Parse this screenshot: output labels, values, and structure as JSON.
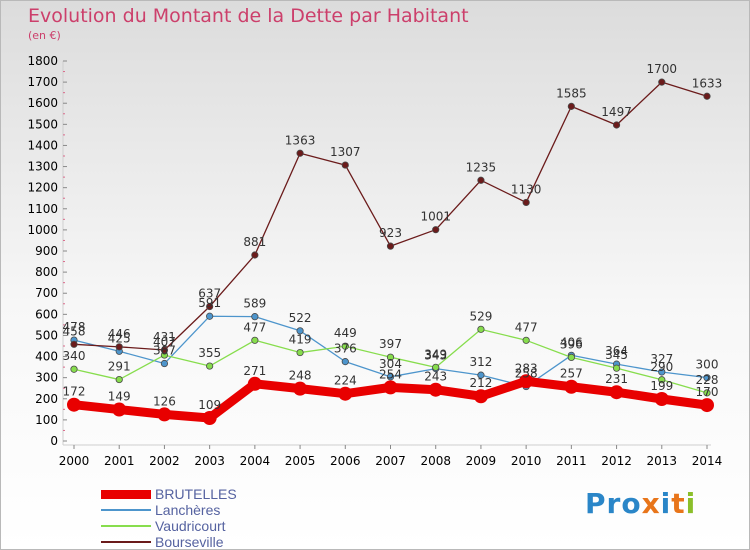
{
  "header": {
    "title": "Evolution du Montant de la Dette par Habitant",
    "subtitle": "(en €)"
  },
  "logo": {
    "text": "Proxiti",
    "colors": [
      "#2a86c8",
      "#2a86c8",
      "#2a86c8",
      "#e8751a",
      "#2a86c8",
      "#e8751a",
      "#8bbf2a"
    ]
  },
  "chart_data": {
    "type": "line",
    "x": [
      2000,
      2001,
      2002,
      2003,
      2004,
      2005,
      2006,
      2007,
      2008,
      2009,
      2010,
      2011,
      2012,
      2013,
      2014
    ],
    "ylim": [
      0,
      1800
    ],
    "yticks": [
      0,
      100,
      200,
      300,
      400,
      500,
      600,
      700,
      800,
      900,
      1000,
      1100,
      1200,
      1300,
      1400,
      1500,
      1600,
      1700,
      1800
    ],
    "grid": false,
    "legend_position": "bottom-left",
    "series": [
      {
        "name": "BRUTELLES",
        "color": "#e80000",
        "values": [
          172,
          149,
          126,
          109,
          271,
          248,
          224,
          254,
          243,
          212,
          283,
          257,
          231,
          199,
          170
        ]
      },
      {
        "name": "Lanchères",
        "color": "#4d95cc",
        "values": [
          478,
          425,
          367,
          591,
          589,
          522,
          376,
          304,
          343,
          312,
          258,
          406,
          364,
          327,
          300
        ]
      },
      {
        "name": "Vaudricourt",
        "color": "#87dd4d",
        "values": [
          340,
          291,
          407,
          355,
          477,
          419,
          449,
          397,
          349,
          529,
          477,
          396,
          345,
          290,
          228
        ]
      },
      {
        "name": "Bourseville",
        "color": "#6b1b1b",
        "values": [
          458,
          446,
          431,
          637,
          881,
          1363,
          1307,
          923,
          1001,
          1235,
          1130,
          1585,
          1497,
          1700,
          1633
        ]
      }
    ]
  }
}
